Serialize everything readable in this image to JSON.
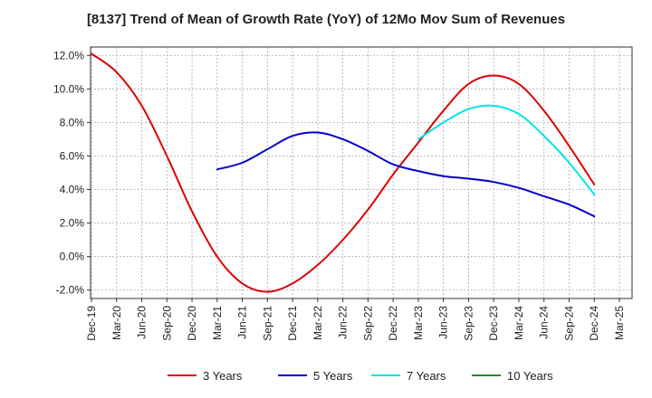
{
  "chart_data": {
    "type": "line",
    "title": "[8137]  Trend of Mean of Growth Rate (YoY) of 12Mo Mov Sum of Revenues",
    "xlabel": "",
    "ylabel": "",
    "ylim": [
      -2.5,
      12.5
    ],
    "y_ticks": [
      -2.0,
      0.0,
      2.0,
      4.0,
      6.0,
      8.0,
      10.0,
      12.0
    ],
    "y_tick_labels": [
      "-2.0%",
      "0.0%",
      "2.0%",
      "4.0%",
      "6.0%",
      "8.0%",
      "10.0%",
      "12.0%"
    ],
    "grid": true,
    "legend_position": "bottom",
    "categories": [
      "Dec-19",
      "Mar-20",
      "Jun-20",
      "Sep-20",
      "Dec-20",
      "Mar-21",
      "Jun-21",
      "Sep-21",
      "Dec-21",
      "Mar-22",
      "Jun-22",
      "Sep-22",
      "Dec-22",
      "Mar-23",
      "Jun-23",
      "Sep-23",
      "Dec-23",
      "Mar-24",
      "Jun-24",
      "Sep-24",
      "Dec-24",
      "Mar-25"
    ],
    "series": [
      {
        "name": "3 Years",
        "color": "#dd0000",
        "values": [
          12.1,
          11.0,
          9.0,
          6.0,
          2.7,
          0.0,
          -1.6,
          -2.1,
          -1.6,
          -0.5,
          1.0,
          2.8,
          4.9,
          6.8,
          8.7,
          10.3,
          10.8,
          10.3,
          8.7,
          6.6,
          4.3,
          null
        ]
      },
      {
        "name": "5 Years",
        "color": "#0000cc",
        "values": [
          null,
          null,
          null,
          null,
          null,
          5.2,
          5.6,
          6.4,
          7.2,
          7.4,
          7.0,
          6.3,
          5.5,
          5.1,
          4.8,
          4.65,
          4.45,
          4.1,
          3.6,
          3.1,
          2.4,
          null
        ]
      },
      {
        "name": "7 Years",
        "color": "#00e5e5",
        "values": [
          null,
          null,
          null,
          null,
          null,
          null,
          null,
          null,
          null,
          null,
          null,
          null,
          null,
          7.0,
          8.0,
          8.8,
          9.0,
          8.5,
          7.2,
          5.6,
          3.7,
          null
        ]
      },
      {
        "name": "10 Years",
        "color": "#228b22",
        "values": [
          null,
          null,
          null,
          null,
          null,
          null,
          null,
          null,
          null,
          null,
          null,
          null,
          null,
          null,
          null,
          null,
          null,
          null,
          null,
          null,
          null,
          null
        ]
      }
    ]
  }
}
